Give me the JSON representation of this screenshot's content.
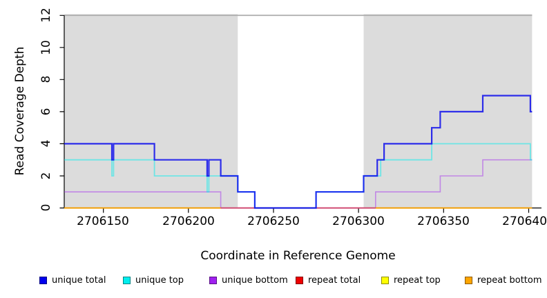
{
  "figure": {
    "xlabel": "Coordinate in Reference Genome",
    "ylabel": "Read Coverage Depth"
  },
  "legend": {
    "items": [
      {
        "label": "unique total",
        "color": "#0000EE"
      },
      {
        "label": "unique top",
        "color": "#00EEEE"
      },
      {
        "label": "unique bottom",
        "color": "#A020F0"
      },
      {
        "label": "repeat total",
        "color": "#EE0000"
      },
      {
        "label": "repeat top",
        "color": "#FFFF00"
      },
      {
        "label": "repeat bottom",
        "color": "#FFA500"
      }
    ]
  },
  "chart_data": {
    "type": "line",
    "step": true,
    "title": "",
    "xlabel": "Coordinate in Reference Genome",
    "ylabel": "Read Coverage Depth",
    "xlim": [
      2706127,
      2706402
    ],
    "ylim": [
      0,
      12
    ],
    "x_ticks": [
      2706150,
      2706200,
      2706250,
      2706300,
      2706350,
      2706400
    ],
    "x_tick_labels": [
      "2706150",
      "2706200",
      "2706250",
      "2706300",
      "2706350",
      "2706400"
    ],
    "y_ticks": [
      0,
      2,
      4,
      6,
      8,
      10,
      12
    ],
    "grid": false,
    "legend_position": "bottom",
    "shade_color": "#DCDCDC",
    "shaded_regions": [
      {
        "from": 2706127,
        "to": 2706229
      },
      {
        "from": 2706303,
        "to": 2706402
      }
    ],
    "cap_line": {
      "y": 12,
      "color": "#ACACAC"
    },
    "series": [
      {
        "name": "unique total",
        "color": "#0000EE",
        "steps": [
          [
            2706127,
            4
          ],
          [
            2706155,
            3
          ],
          [
            2706156,
            4
          ],
          [
            2706180,
            3
          ],
          [
            2706211,
            2
          ],
          [
            2706212,
            3
          ],
          [
            2706219,
            2
          ],
          [
            2706229,
            1
          ],
          [
            2706239,
            0
          ],
          [
            2706275,
            1
          ],
          [
            2706303,
            2
          ],
          [
            2706311,
            3
          ],
          [
            2706315,
            4
          ],
          [
            2706343,
            5
          ],
          [
            2706348,
            6
          ],
          [
            2706373,
            7
          ],
          [
            2706401,
            6
          ]
        ]
      },
      {
        "name": "unique top",
        "color": "#00EEEE",
        "steps": [
          [
            2706127,
            3
          ],
          [
            2706155,
            2
          ],
          [
            2706156,
            3
          ],
          [
            2706180,
            2
          ],
          [
            2706211,
            1
          ],
          [
            2706212,
            2
          ],
          [
            2706229,
            1
          ],
          [
            2706239,
            0
          ],
          [
            2706275,
            1
          ],
          [
            2706303,
            2
          ],
          [
            2706313,
            3
          ],
          [
            2706343,
            4
          ],
          [
            2706401,
            3
          ]
        ]
      },
      {
        "name": "unique bottom",
        "color": "#A020F0",
        "steps": [
          [
            2706127,
            1
          ],
          [
            2706219,
            0
          ],
          [
            2706310,
            1
          ],
          [
            2706348,
            2
          ],
          [
            2706373,
            3
          ]
        ]
      },
      {
        "name": "repeat total",
        "color": "#EE0000",
        "steps": [
          [
            2706127,
            0
          ]
        ]
      },
      {
        "name": "repeat top",
        "color": "#FFFF00",
        "steps": [
          [
            2706127,
            0
          ]
        ]
      },
      {
        "name": "repeat bottom",
        "color": "#FFA500",
        "steps": [
          [
            2706127,
            0
          ]
        ]
      }
    ],
    "baseline_visible_segments": [
      {
        "from": 2706127,
        "to": 2706219,
        "color": "#FFA500"
      },
      {
        "from": 2706219,
        "to": 2706310,
        "color": "#D6496F"
      },
      {
        "from": 2706310,
        "to": 2706402,
        "color": "#FFA500"
      }
    ]
  }
}
